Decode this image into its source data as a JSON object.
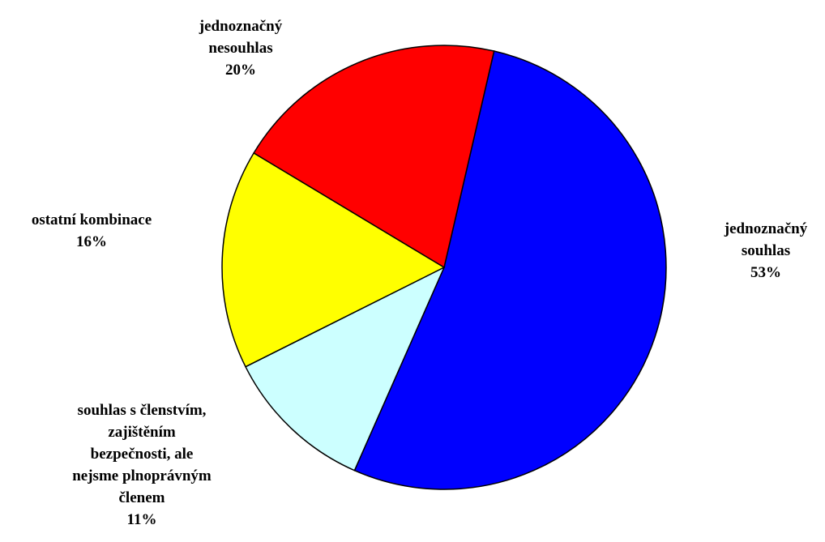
{
  "chart_data": {
    "type": "pie",
    "slices": [
      {
        "label": [
          "jednoznačný",
          "souhlas"
        ],
        "value": 53,
        "value_label": "53%",
        "color": "#0000FF"
      },
      {
        "label": [
          "souhlas s členstvím,",
          "zajištěním",
          "bezpečnosti, ale",
          "nejsme plnoprávným",
          "členem"
        ],
        "value": 11,
        "value_label": "11%",
        "color": "#CCFFFF"
      },
      {
        "label": [
          "ostatní kombinace"
        ],
        "value": 16,
        "value_label": "16%",
        "color": "#FFFF00"
      },
      {
        "label": [
          "jednoznačný",
          "nesouhlas"
        ],
        "value": 20,
        "value_label": "20%",
        "color": "#FF0000"
      }
    ]
  }
}
